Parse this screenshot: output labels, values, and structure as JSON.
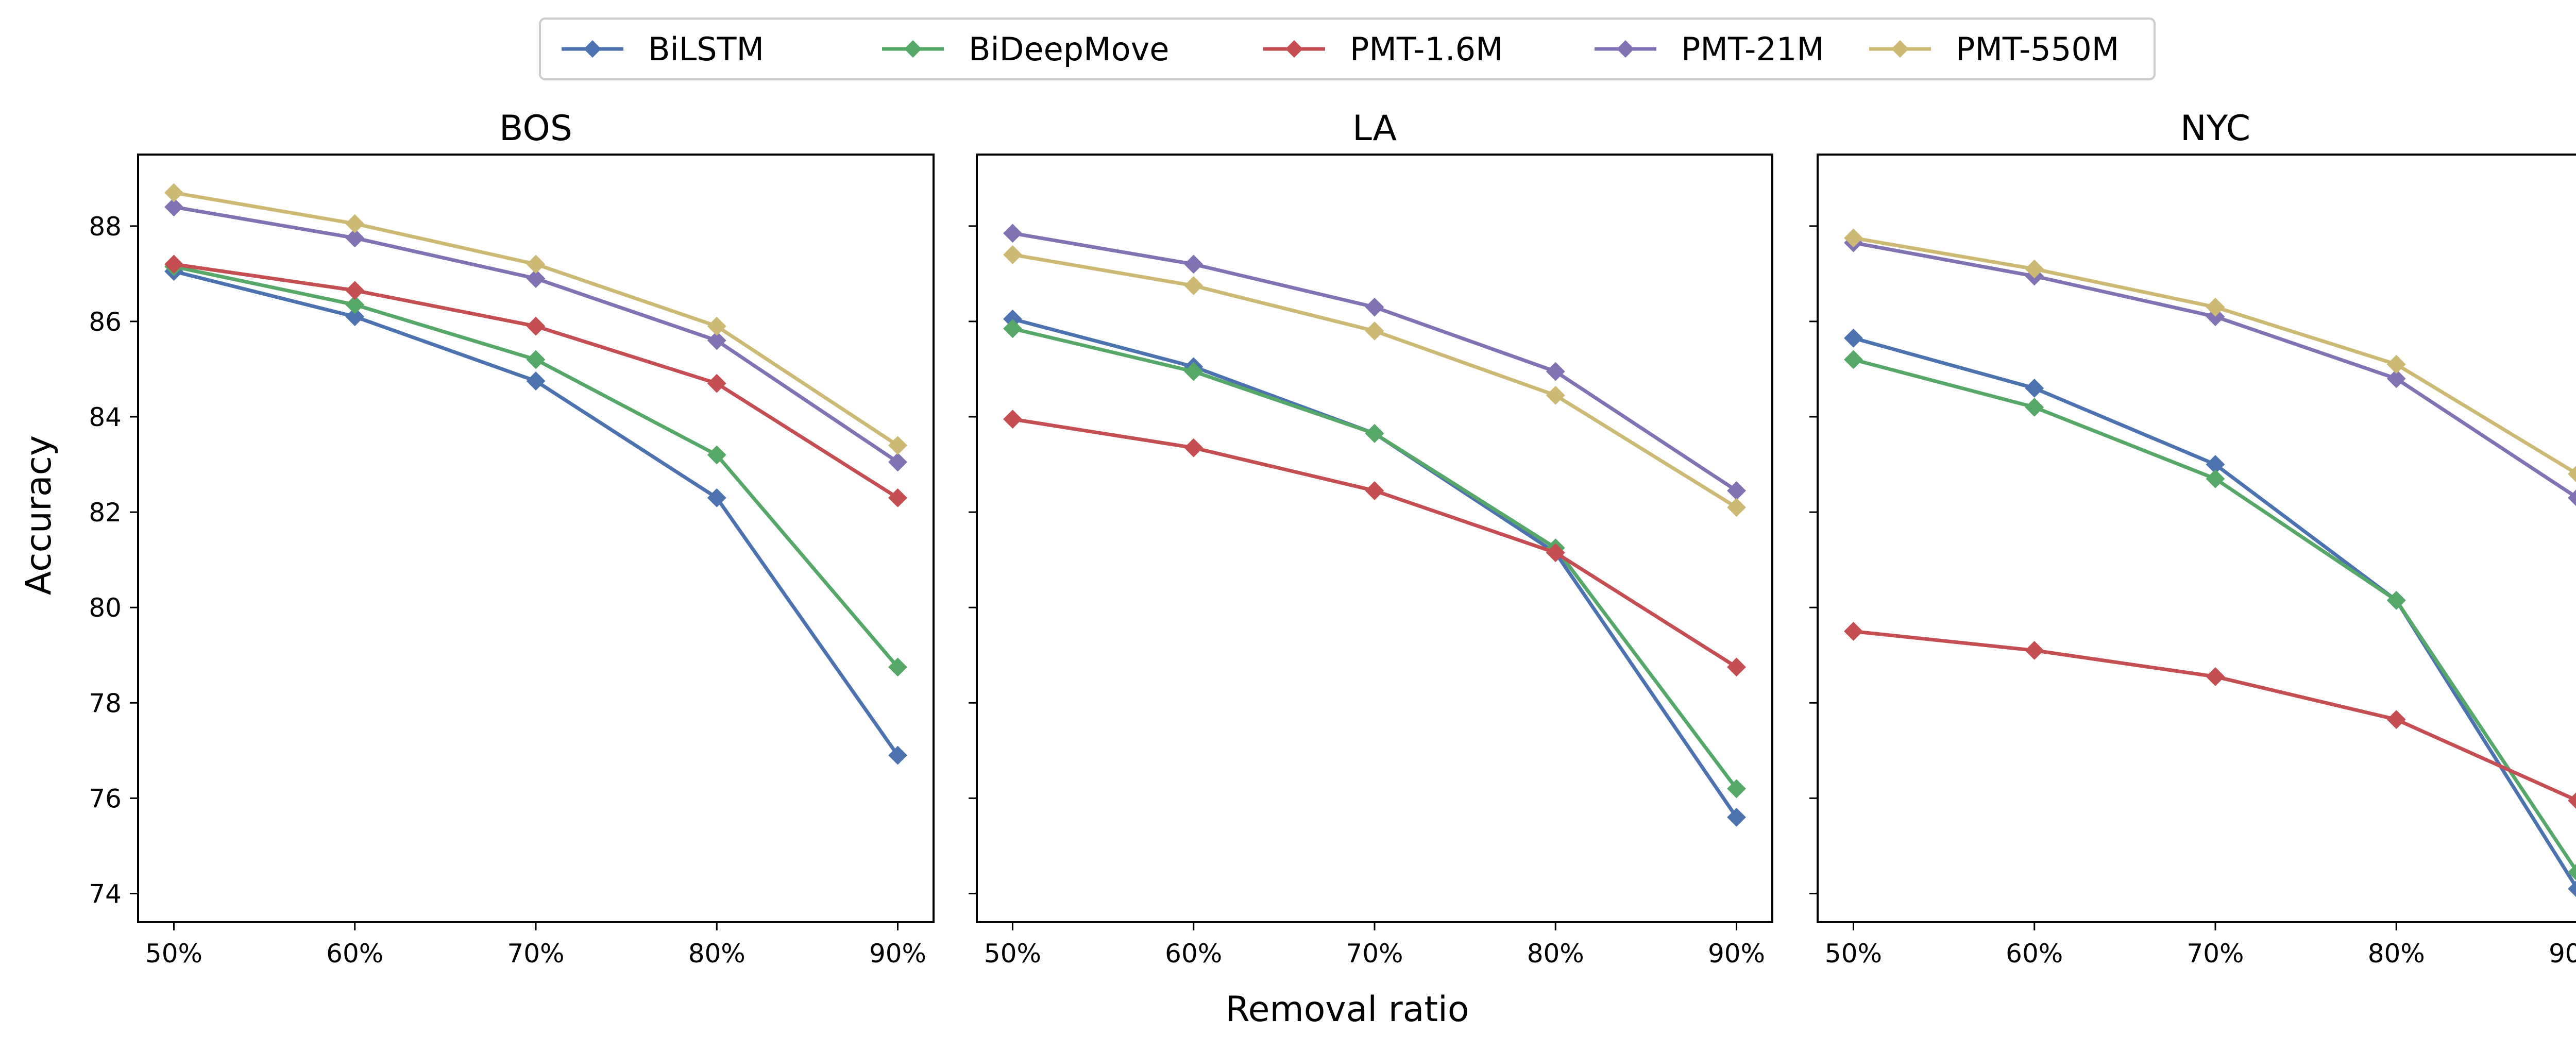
{
  "chart_data": {
    "type": "line",
    "ylabel": "Accuracy",
    "xlabel": "Removal ratio",
    "x": [
      "50%",
      "60%",
      "70%",
      "80%",
      "90%"
    ],
    "ylim": [
      73.4,
      89.5
    ],
    "yticks": [
      74,
      76,
      78,
      80,
      82,
      84,
      86,
      88
    ],
    "legend_position": "top-center",
    "marker": "diamond",
    "series_styles": [
      {
        "name": "BiLSTM",
        "color": "#4c72b0"
      },
      {
        "name": "BiDeepMove",
        "color": "#55a868"
      },
      {
        "name": "PMT-1.6M",
        "color": "#c44e52"
      },
      {
        "name": "PMT-21M",
        "color": "#8172b3"
      },
      {
        "name": "PMT-550M",
        "color": "#ccb974"
      }
    ],
    "panels": [
      {
        "title": "BOS",
        "series": [
          {
            "name": "BiLSTM",
            "values": [
              87.05,
              86.1,
              84.75,
              82.3,
              76.9
            ]
          },
          {
            "name": "BiDeepMove",
            "values": [
              87.15,
              86.35,
              85.2,
              83.2,
              78.75
            ]
          },
          {
            "name": "PMT-1.6M",
            "values": [
              87.2,
              86.65,
              85.9,
              84.7,
              82.3
            ]
          },
          {
            "name": "PMT-21M",
            "values": [
              88.4,
              87.75,
              86.9,
              85.6,
              83.05
            ]
          },
          {
            "name": "PMT-550M",
            "values": [
              88.7,
              88.05,
              87.2,
              85.9,
              83.4
            ]
          }
        ]
      },
      {
        "title": "LA",
        "series": [
          {
            "name": "BiLSTM",
            "values": [
              86.05,
              85.05,
              83.65,
              81.15,
              75.6
            ]
          },
          {
            "name": "BiDeepMove",
            "values": [
              85.85,
              84.95,
              83.65,
              81.25,
              76.2
            ]
          },
          {
            "name": "PMT-1.6M",
            "values": [
              83.95,
              83.35,
              82.45,
              81.15,
              78.75
            ]
          },
          {
            "name": "PMT-21M",
            "values": [
              87.85,
              87.2,
              86.3,
              84.95,
              82.45
            ]
          },
          {
            "name": "PMT-550M",
            "values": [
              87.4,
              86.75,
              85.8,
              84.45,
              82.1
            ]
          }
        ]
      },
      {
        "title": "NYC",
        "series": [
          {
            "name": "BiLSTM",
            "values": [
              85.65,
              84.6,
              83.0,
              80.15,
              74.1
            ]
          },
          {
            "name": "BiDeepMove",
            "values": [
              85.2,
              84.2,
              82.7,
              80.15,
              74.45
            ]
          },
          {
            "name": "PMT-1.6M",
            "values": [
              79.5,
              79.1,
              78.55,
              77.65,
              75.95
            ]
          },
          {
            "name": "PMT-21M",
            "values": [
              87.65,
              86.95,
              86.1,
              84.8,
              82.3
            ]
          },
          {
            "name": "PMT-550M",
            "values": [
              87.75,
              87.1,
              86.3,
              85.1,
              82.8
            ]
          }
        ]
      }
    ]
  }
}
